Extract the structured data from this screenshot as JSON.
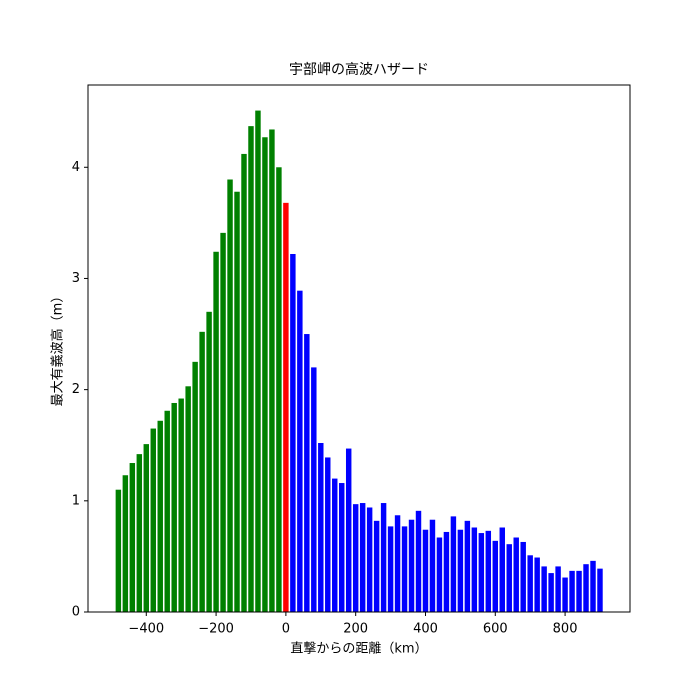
{
  "chart_data": {
    "type": "bar",
    "title": "宇部岬の高波ハザード",
    "x_label": "直撃からの距離（km）",
    "y_label": "最大有義波高（m）",
    "series": [
      {
        "color": "#008000",
        "x": [
          -480,
          -460,
          -440,
          -420,
          -400,
          -380,
          -360,
          -340,
          -320,
          -300,
          -280,
          -260,
          -240,
          -220,
          -200,
          -180,
          -160,
          -140,
          -120,
          -100,
          -80,
          -60,
          -40,
          -20
        ],
        "values": [
          1.1,
          1.23,
          1.34,
          1.42,
          1.51,
          1.65,
          1.72,
          1.81,
          1.88,
          1.92,
          2.03,
          2.25,
          2.52,
          2.7,
          3.24,
          3.41,
          3.89,
          3.78,
          4.12,
          4.37,
          4.51,
          4.27,
          4.34,
          4.0
        ]
      },
      {
        "color": "#ff0000",
        "x": [
          0
        ],
        "values": [
          3.68
        ]
      },
      {
        "color": "#0000ff",
        "x": [
          20,
          40,
          60,
          80,
          100,
          120,
          140,
          160,
          180,
          200,
          220,
          240,
          260,
          280,
          300,
          320,
          340,
          360,
          380,
          400,
          420,
          440,
          460,
          480,
          500,
          520,
          540,
          560,
          580,
          600,
          620,
          640,
          660,
          680,
          700,
          720,
          740,
          760,
          780,
          800,
          820,
          840,
          860,
          880,
          900
        ],
        "values": [
          3.22,
          2.89,
          2.5,
          2.2,
          1.52,
          1.39,
          1.2,
          1.16,
          1.47,
          0.97,
          0.98,
          0.94,
          0.82,
          0.98,
          0.77,
          0.87,
          0.77,
          0.83,
          0.91,
          0.74,
          0.83,
          0.67,
          0.72,
          0.86,
          0.74,
          0.82,
          0.76,
          0.71,
          0.73,
          0.64,
          0.76,
          0.61,
          0.67,
          0.63,
          0.51,
          0.49,
          0.41,
          0.35,
          0.41,
          0.31,
          0.37,
          0.37,
          0.43,
          0.46,
          0.39
        ]
      }
    ],
    "xlim": [
      -567,
      986
    ],
    "ylim": [
      0,
      4.74
    ],
    "xticks": [
      {
        "value": -400,
        "label": "−400"
      },
      {
        "value": -200,
        "label": "−200"
      },
      0,
      200,
      400,
      600,
      800
    ],
    "yticks": [
      0,
      1,
      2,
      3,
      4
    ]
  }
}
